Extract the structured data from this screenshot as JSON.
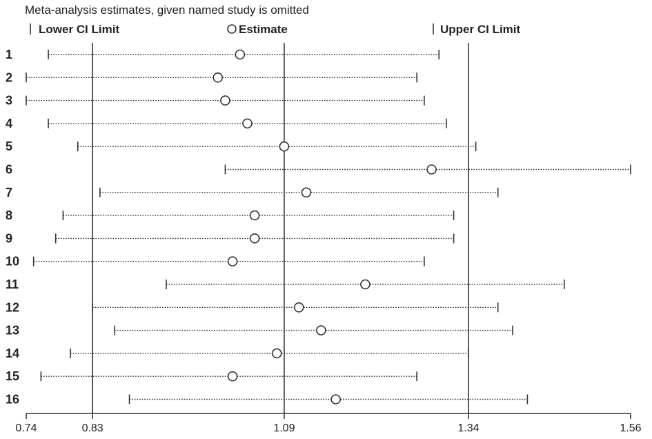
{
  "chart_data": {
    "type": "forest",
    "title": "Meta-analysis estimates, given named study is omitted",
    "legend": {
      "lower": "Lower CI Limit",
      "estimate": "Estimate",
      "upper": "Upper CI Limit"
    },
    "xlim": [
      0.74,
      1.56
    ],
    "xticks": [
      0.74,
      0.83,
      1.09,
      1.34,
      1.56
    ],
    "xtick_labels": [
      "0.74",
      "0.83",
      "1.09",
      "1.34",
      "1.56"
    ],
    "reference_lines": [
      0.83,
      1.09,
      1.34
    ],
    "studies": [
      {
        "label": "1",
        "lower": 0.77,
        "estimate": 1.03,
        "upper": 1.3
      },
      {
        "label": "2",
        "lower": 0.74,
        "estimate": 1.0,
        "upper": 1.27
      },
      {
        "label": "3",
        "lower": 0.74,
        "estimate": 1.01,
        "upper": 1.28
      },
      {
        "label": "4",
        "lower": 0.77,
        "estimate": 1.04,
        "upper": 1.31
      },
      {
        "label": "5",
        "lower": 0.81,
        "estimate": 1.09,
        "upper": 1.35
      },
      {
        "label": "6",
        "lower": 1.01,
        "estimate": 1.29,
        "upper": 1.56
      },
      {
        "label": "7",
        "lower": 0.84,
        "estimate": 1.12,
        "upper": 1.38
      },
      {
        "label": "8",
        "lower": 0.79,
        "estimate": 1.05,
        "upper": 1.32
      },
      {
        "label": "9",
        "lower": 0.78,
        "estimate": 1.05,
        "upper": 1.32
      },
      {
        "label": "10",
        "lower": 0.75,
        "estimate": 1.02,
        "upper": 1.28
      },
      {
        "label": "11",
        "lower": 0.93,
        "estimate": 1.2,
        "upper": 1.47
      },
      {
        "label": "12",
        "lower": 0.83,
        "estimate": 1.11,
        "upper": 1.38
      },
      {
        "label": "13",
        "lower": 0.86,
        "estimate": 1.14,
        "upper": 1.4
      },
      {
        "label": "14",
        "lower": 0.8,
        "estimate": 1.08,
        "upper": 1.34
      },
      {
        "label": "15",
        "lower": 0.76,
        "estimate": 1.02,
        "upper": 1.27
      },
      {
        "label": "16",
        "lower": 0.88,
        "estimate": 1.16,
        "upper": 1.42
      }
    ],
    "colors": {
      "lines": "#333333",
      "text": "#222222"
    }
  }
}
